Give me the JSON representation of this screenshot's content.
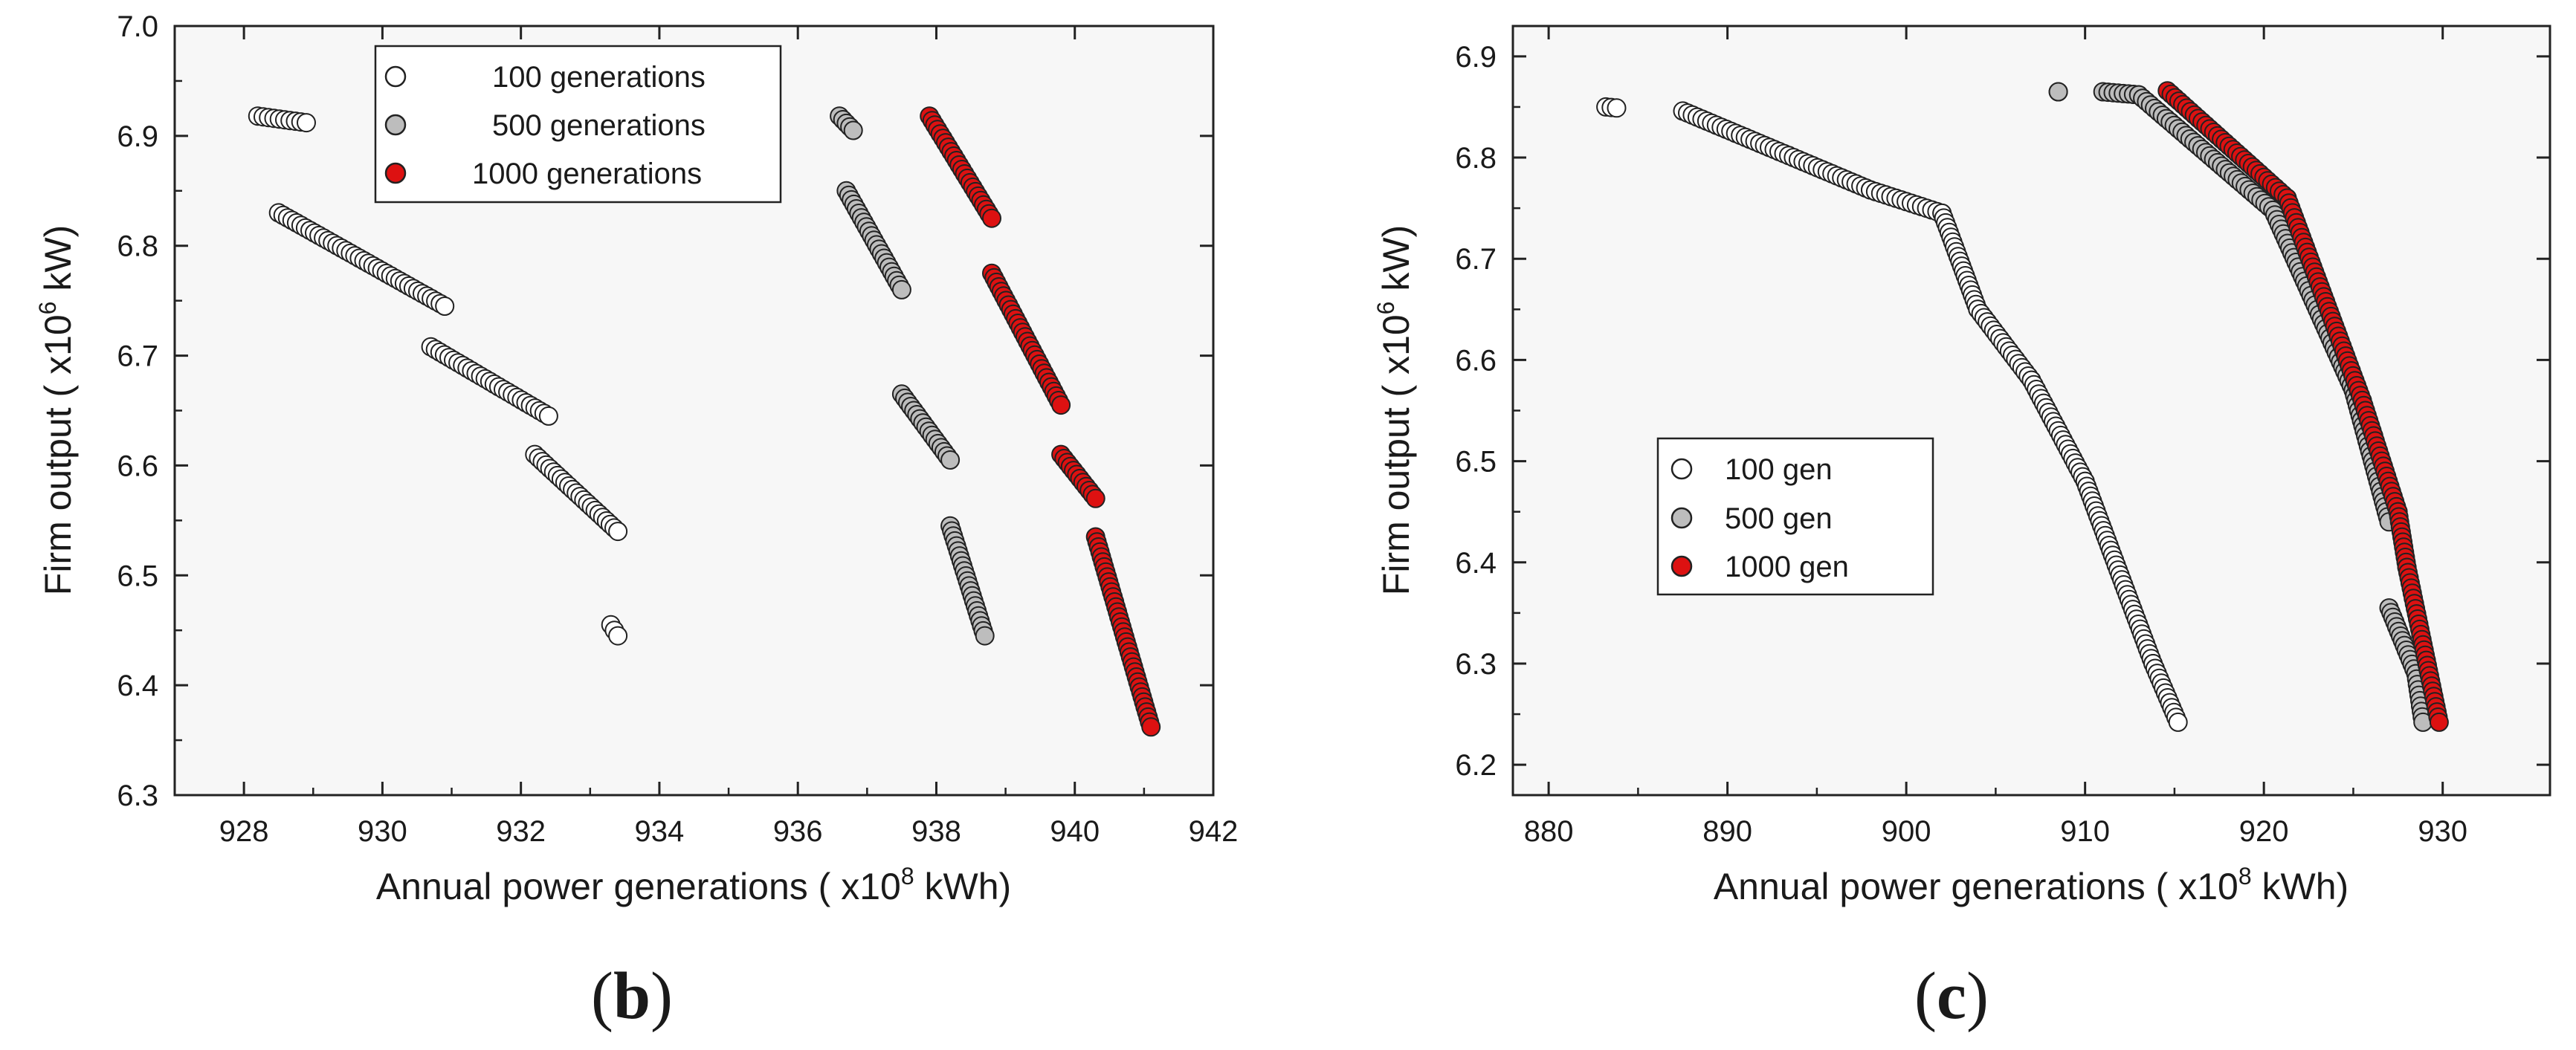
{
  "colors": {
    "series_100": "#ffffff",
    "series_500": "#bdbdbd",
    "series_1000": "#dd1111",
    "marker_stroke": "#222222",
    "axis": "#222222",
    "panel_background": "#f7f7f7"
  },
  "chart_data": [
    {
      "type": "scatter",
      "panel_label": "b",
      "title": "",
      "xlabel": "Annual power generations ( x10",
      "xlabel_exponent": "8",
      "xlabel_unit": " kWh)",
      "ylabel": "Firm output ( x10",
      "ylabel_exponent": "6",
      "ylabel_unit": " kW)",
      "xlim": [
        927,
        942
      ],
      "ylim": [
        6.3,
        7.0
      ],
      "xticks": [
        928,
        930,
        932,
        934,
        936,
        938,
        940,
        942
      ],
      "yticks": [
        6.3,
        6.4,
        6.5,
        6.6,
        6.7,
        6.8,
        6.9,
        7.0
      ],
      "legend_position": "top-center",
      "grid": false,
      "series": [
        {
          "name": "100 generations",
          "color_key": "series_100",
          "segments": [
            [
              [
                928.2,
                6.918
              ],
              [
                928.9,
                6.912
              ]
            ],
            [
              [
                928.5,
                6.83
              ],
              [
                930.9,
                6.745
              ]
            ],
            [
              [
                930.7,
                6.708
              ],
              [
                932.4,
                6.645
              ]
            ],
            [
              [
                932.2,
                6.61
              ],
              [
                933.4,
                6.54
              ]
            ],
            [
              [
                933.3,
                6.455
              ],
              [
                933.4,
                6.445
              ]
            ]
          ]
        },
        {
          "name": "500 generations",
          "color_key": "series_500",
          "segments": [
            [
              [
                936.6,
                6.918
              ],
              [
                936.8,
                6.905
              ]
            ],
            [
              [
                936.7,
                6.85
              ],
              [
                937.5,
                6.76
              ]
            ],
            [
              [
                937.5,
                6.665
              ],
              [
                938.2,
                6.605
              ]
            ],
            [
              [
                938.2,
                6.545
              ],
              [
                938.7,
                6.445
              ]
            ]
          ]
        },
        {
          "name": "1000 generations",
          "color_key": "series_1000",
          "segments": [
            [
              [
                937.9,
                6.918
              ],
              [
                938.8,
                6.825
              ]
            ],
            [
              [
                938.8,
                6.775
              ],
              [
                939.8,
                6.655
              ]
            ],
            [
              [
                939.8,
                6.61
              ],
              [
                940.3,
                6.57
              ]
            ],
            [
              [
                940.3,
                6.535
              ],
              [
                941.1,
                6.362
              ]
            ]
          ]
        }
      ]
    },
    {
      "type": "scatter",
      "panel_label": "c",
      "title": "",
      "xlabel": "Annual power generations ( x10",
      "xlabel_exponent": "8",
      "xlabel_unit": " kWh)",
      "ylabel": "Firm output ( x10",
      "ylabel_exponent": "6",
      "ylabel_unit": " kW)",
      "xlim": [
        878,
        936
      ],
      "ylim": [
        6.17,
        6.93
      ],
      "xticks": [
        880,
        890,
        900,
        910,
        920,
        930
      ],
      "yticks": [
        6.2,
        6.3,
        6.4,
        6.5,
        6.6,
        6.7,
        6.8,
        6.9
      ],
      "legend_position": "center-left",
      "grid": false,
      "series": [
        {
          "name": "100 gen",
          "color_key": "series_100",
          "segments": [
            [
              [
                883.2,
                6.85
              ],
              [
                883.8,
                6.849
              ]
            ],
            [
              [
                887.5,
                6.846
              ],
              [
                898.0,
                6.768
              ]
            ],
            [
              [
                898.0,
                6.768
              ],
              [
                902.0,
                6.745
              ]
            ],
            [
              [
                902.0,
                6.745
              ],
              [
                904.0,
                6.65
              ]
            ],
            [
              [
                904.0,
                6.65
              ],
              [
                907.0,
                6.58
              ]
            ],
            [
              [
                907.0,
                6.58
              ],
              [
                910.0,
                6.48
              ]
            ],
            [
              [
                910.0,
                6.48
              ],
              [
                913.8,
                6.3
              ]
            ],
            [
              [
                913.8,
                6.3
              ],
              [
                915.2,
                6.242
              ]
            ]
          ]
        },
        {
          "name": "500 gen",
          "color_key": "series_500",
          "segments": [
            [
              [
                908.5,
                6.865
              ],
              [
                908.5,
                6.865
              ]
            ],
            [
              [
                911.0,
                6.865
              ],
              [
                913.0,
                6.862
              ]
            ],
            [
              [
                913.0,
                6.862
              ],
              [
                920.5,
                6.748
              ]
            ],
            [
              [
                920.5,
                6.748
              ],
              [
                925.0,
                6.57
              ]
            ],
            [
              [
                925.0,
                6.57
              ],
              [
                927.0,
                6.44
              ]
            ],
            [
              [
                927.0,
                6.355
              ],
              [
                928.5,
                6.29
              ]
            ],
            [
              [
                928.5,
                6.29
              ],
              [
                928.9,
                6.242
              ]
            ]
          ]
        },
        {
          "name": "1000 gen",
          "color_key": "series_1000",
          "segments": [
            [
              [
                914.6,
                6.866
              ],
              [
                921.3,
                6.76
              ]
            ],
            [
              [
                921.3,
                6.76
              ],
              [
                925.5,
                6.56
              ]
            ],
            [
              [
                925.5,
                6.56
              ],
              [
                927.5,
                6.45
              ]
            ],
            [
              [
                927.5,
                6.45
              ],
              [
                928.0,
                6.395
              ]
            ],
            [
              [
                928.0,
                6.395
              ],
              [
                929.8,
                6.242
              ]
            ]
          ]
        }
      ]
    }
  ]
}
